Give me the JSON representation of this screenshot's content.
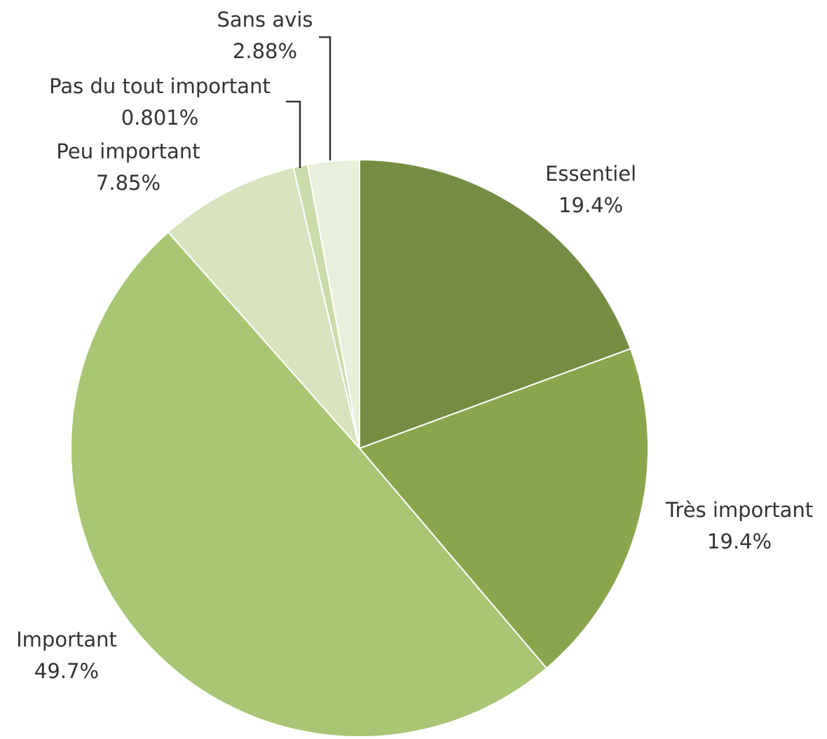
{
  "chart_data": {
    "type": "pie",
    "categories": [
      "Essentiel",
      "Très important",
      "Important",
      "Peu important",
      "Pas du tout important",
      "Sans avis"
    ],
    "values": [
      19.4,
      19.4,
      49.7,
      7.85,
      0.801,
      2.88
    ],
    "value_labels": [
      "19.4%",
      "19.4%",
      "49.7%",
      "7.85%",
      "0.801%",
      "2.88%"
    ],
    "colors": [
      "#758d42",
      "#8aa64d",
      "#a9c674",
      "#d7e4bf",
      "#c9dcaa",
      "#e8f0dc"
    ]
  }
}
